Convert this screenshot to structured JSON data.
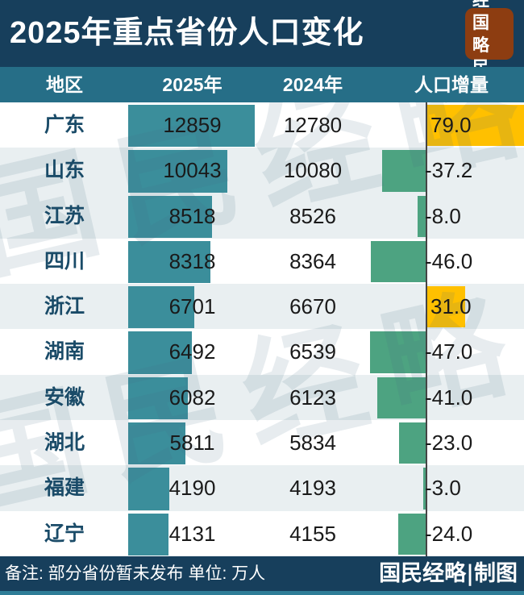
{
  "header": {
    "title": "2025年重点省份人口变化",
    "logo": {
      "line1": "经国",
      "line2": "略民"
    }
  },
  "table": {
    "columns": {
      "region": "地区",
      "y2025": "2025年",
      "y2024": "2024年",
      "delta": "人口增量"
    },
    "rows": [
      {
        "region": "广东",
        "pop_2025": "12859",
        "pop_2024": "12780",
        "delta": "79.0"
      },
      {
        "region": "山东",
        "pop_2025": "10043",
        "pop_2024": "10080",
        "delta": "-37.2"
      },
      {
        "region": "江苏",
        "pop_2025": "8518",
        "pop_2024": "8526",
        "delta": "-8.0"
      },
      {
        "region": "四川",
        "pop_2025": "8318",
        "pop_2024": "8364",
        "delta": "-46.0"
      },
      {
        "region": "浙江",
        "pop_2025": "6701",
        "pop_2024": "6670",
        "delta": "31.0"
      },
      {
        "region": "湖南",
        "pop_2025": "6492",
        "pop_2024": "6539",
        "delta": "-47.0"
      },
      {
        "region": "安徽",
        "pop_2025": "6082",
        "pop_2024": "6123",
        "delta": "-41.0"
      },
      {
        "region": "湖北",
        "pop_2025": "5811",
        "pop_2024": "5834",
        "delta": "-23.0"
      },
      {
        "region": "福建",
        "pop_2025": "4190",
        "pop_2024": "4193",
        "delta": "-3.0"
      },
      {
        "region": "辽宁",
        "pop_2025": "4131",
        "pop_2024": "4155",
        "delta": "-24.0"
      }
    ]
  },
  "footer": {
    "note": "备注: 部分省份暂未发布 单位: 万人",
    "credit": "国民经略|制图"
  },
  "watermark": {
    "text": "国民经略"
  },
  "colors": {
    "banner_navy": "#173f5c",
    "column_header_teal": "#266e87",
    "bar_2025_teal": "#3b8e9b",
    "delta_positive_orange": "#ffc000",
    "delta_negative_green": "#4da381",
    "shaded_row": "#e9eff1",
    "province_text": "#1a4b68",
    "seal_background": "#8d3d11",
    "bottom_strip_teal": "#2e7d97"
  },
  "chart_data": {
    "type": "table",
    "title": "2025年重点省份人口变化",
    "columns": [
      "地区",
      "2025年",
      "2024年",
      "人口增量"
    ],
    "categories": [
      "广东",
      "山东",
      "江苏",
      "四川",
      "浙江",
      "湖南",
      "安徽",
      "湖北",
      "福建",
      "辽宁"
    ],
    "series": [
      {
        "name": "2025年",
        "values": [
          12859,
          10043,
          8518,
          8318,
          6701,
          6492,
          6082,
          5811,
          4190,
          4131
        ]
      },
      {
        "name": "2024年",
        "values": [
          12780,
          10080,
          8526,
          8364,
          6670,
          6539,
          6123,
          5834,
          4193,
          4155
        ]
      },
      {
        "name": "人口增量",
        "values": [
          79.0,
          -37.2,
          -8.0,
          -46.0,
          31.0,
          -47.0,
          -41.0,
          -23.0,
          -3.0,
          -24.0
        ]
      }
    ],
    "unit": "万人",
    "note": "部分省份暂未发布",
    "bar_baseline_x": "人口增量 bars grow right (positive, orange) or left (negative, green) from a zero axis",
    "positive_color": "#ffc000",
    "negative_color": "#4da381",
    "bar_2025_color": "#3b8e9b"
  }
}
